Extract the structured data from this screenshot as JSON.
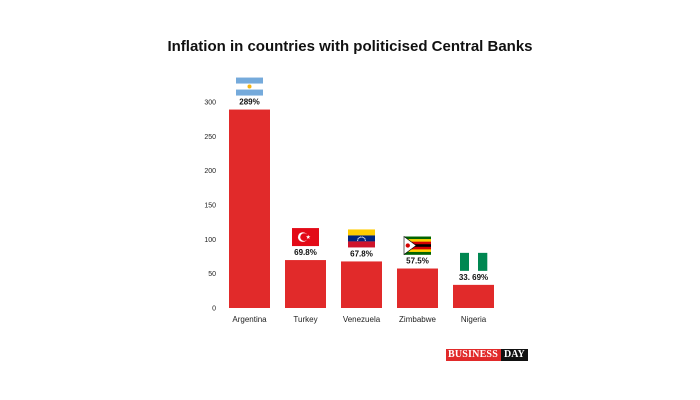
{
  "brand": {
    "business": "BUSINESS",
    "day": "DAY"
  },
  "colors": {
    "bar": "#e12a2a",
    "text": "#111111"
  },
  "chart_data": {
    "type": "bar",
    "title": "Inflation in countries with politicised Central Banks",
    "xlabel": "",
    "ylabel": "",
    "ylim": [
      0,
      300
    ],
    "yticks": [
      0,
      50,
      100,
      150,
      200,
      250,
      300
    ],
    "grid": false,
    "legend": "none",
    "categories": [
      "Argentina",
      "Turkey",
      "Venezuela",
      "Zimbabwe",
      "Nigeria"
    ],
    "values": [
      289,
      69.8,
      67.8,
      57.5,
      33.69
    ],
    "data_labels": [
      "289%",
      "69.8%",
      "67.8%",
      "57.5%",
      "33. 69%"
    ],
    "flags": [
      "argentina-flag",
      "turkey-flag",
      "venezuela-flag",
      "zimbabwe-flag",
      "nigeria-flag"
    ]
  }
}
